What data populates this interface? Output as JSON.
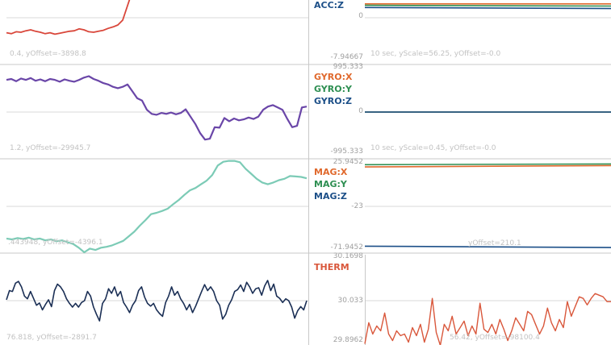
{
  "colors": {
    "background": "#ffffff",
    "gridline": "#d8d8d8",
    "divider": "#c8c8c8",
    "acc": "#d9463a",
    "gyro": "#6a46a8",
    "mag": "#7ccbb6",
    "therm_left": "#1b2f55",
    "x_series": "#e0692d",
    "y_series": "#2e8f52",
    "z_series": "#1c4f88",
    "therm": "#d9573b",
    "tick_text": "#a0a0a0",
    "info_text": "#c2c2c2"
  },
  "left_panels": {
    "acc_info": "0.4, yOffset=-3898.8",
    "gyro_info": "1.2, yOffset=-29945.7",
    "mag_info": ".443948, yOffset=-4396.1",
    "therm_info": "76.818, yOffset=-2891.7"
  },
  "right_panels": {
    "acc": {
      "labels": [
        "ACC:Z"
      ],
      "tick_mid": "0",
      "tick_bottom": "-7.94667",
      "info": "10 sec, yScale=56.25, yOffset=-0.0"
    },
    "gyro": {
      "labels": [
        "GYRO:X",
        "GYRO:Y",
        "GYRO:Z"
      ],
      "tick_top": "995.333",
      "tick_mid": "0",
      "tick_bottom": "-995.333",
      "info": "10 sec, yScale=0.45, yOffset=-0.0"
    },
    "mag": {
      "labels": [
        "MAG:X",
        "MAG:Y",
        "MAG:Z"
      ],
      "tick_top": "25.9452",
      "tick_mid": "-23",
      "tick_bottom": "-71.9452",
      "info": "yOffset=210.1"
    },
    "therm": {
      "labels": [
        "THERM"
      ],
      "tick_top": "30.1698",
      "tick_mid": "30.033",
      "tick_bottom": "29.8962",
      "info": "56.42, yOffset=-98100.4"
    }
  },
  "chart_data": [
    {
      "type": "line",
      "title": "",
      "series": [
        {
          "values": [
            0.31,
            0.33,
            0.29,
            0.3,
            0.27,
            0.25,
            0.28,
            0.3,
            0.33,
            0.31,
            0.34,
            0.32,
            0.3,
            0.28,
            0.27,
            0.23,
            0.25,
            0.29,
            0.3,
            0.28,
            0.26,
            0.22,
            0.19,
            0.15,
            0.05,
            -0.25,
            -0.55,
            -0.72,
            -0.72,
            -0.78,
            -0.88,
            -0.95,
            -0.9,
            -0.82,
            -0.93,
            -0.96,
            -0.92,
            -0.88,
            -0.96,
            -0.9,
            -0.85,
            -0.93,
            -1.0,
            -0.95,
            -0.88,
            -0.85,
            -0.9,
            -0.95,
            -1.0,
            -0.95,
            -0.92,
            -0.95,
            -0.98,
            -1.0,
            -0.96,
            -0.85,
            -0.7,
            -0.75,
            -0.8,
            -0.9,
            -0.95,
            -1.0,
            -0.9
          ]
        }
      ]
    },
    {
      "type": "line",
      "x": [
        0,
        5
      ],
      "ylim": [
        -7.94667,
        7.94667
      ],
      "series": [
        {
          "name": "ACC:Z",
          "values": [
            7.3,
            7.3
          ]
        },
        {
          "values": [
            6.9,
            6.7
          ]
        },
        {
          "values": [
            6.3,
            6.0
          ]
        }
      ]
    },
    {
      "type": "line",
      "title": "",
      "series": [
        {
          "values": [
            -0.7,
            -0.72,
            -0.67,
            -0.73,
            -0.7,
            -0.74,
            -0.68,
            -0.71,
            -0.67,
            -0.72,
            -0.7,
            -0.66,
            -0.71,
            -0.68,
            -0.66,
            -0.7,
            -0.75,
            -0.78,
            -0.72,
            -0.68,
            -0.63,
            -0.6,
            -0.55,
            -0.52,
            -0.55,
            -0.6,
            -0.45,
            -0.3,
            -0.25,
            -0.05,
            0.04,
            0.06,
            0.02,
            0.04,
            0.01,
            0.05,
            0.02,
            -0.06,
            0.1,
            0.26,
            0.46,
            0.6,
            0.58,
            0.33,
            0.34,
            0.13,
            0.2,
            0.14,
            0.18,
            0.16,
            0.12,
            0.15,
            0.1,
            -0.05,
            -0.12,
            -0.15,
            -0.1,
            -0.05,
            0.15,
            0.33,
            0.3,
            -0.1,
            -0.12
          ]
        }
      ]
    },
    {
      "type": "line",
      "x": [
        0,
        5
      ],
      "ylim": [
        -995.333,
        995.333
      ],
      "series": [
        {
          "name": "GYRO:X",
          "values": [
            0,
            0
          ]
        },
        {
          "name": "GYRO:Y",
          "values": [
            0,
            0
          ]
        },
        {
          "name": "GYRO:Z",
          "values": [
            0,
            0
          ]
        }
      ]
    },
    {
      "type": "line",
      "title": "",
      "series": [
        {
          "values": [
            -0.7,
            -0.72,
            -0.69,
            -0.71,
            -0.68,
            -0.72,
            -0.7,
            -0.74,
            -0.72,
            -0.76,
            -0.74,
            -0.78,
            -0.82,
            -0.9,
            -1.0,
            -0.92,
            -0.95,
            -0.9,
            -0.88,
            -0.85,
            -0.8,
            -0.75,
            -0.65,
            -0.55,
            -0.42,
            -0.3,
            -0.17,
            -0.14,
            -0.1,
            -0.05,
            0.05,
            0.14,
            0.25,
            0.35,
            0.4,
            0.48,
            0.56,
            0.68,
            0.89,
            0.97,
            0.99,
            0.99,
            0.96,
            0.82,
            0.71,
            0.6,
            0.52,
            0.48,
            0.52,
            0.57,
            0.6,
            0.66,
            0.65,
            0.64,
            0.61
          ]
        }
      ]
    },
    {
      "type": "line",
      "x": [
        0,
        5
      ],
      "ylim": [
        -71.9452,
        25.9452
      ],
      "series": [
        {
          "name": "MAG:X",
          "values": [
            20.5,
            22.0
          ]
        },
        {
          "name": "MAG:Y",
          "values": [
            23.0,
            23.8
          ]
        },
        {
          "name": "MAG:Z",
          "values": [
            -67.0,
            -68.5
          ]
        }
      ]
    },
    {
      "type": "line",
      "title": "",
      "series": [
        {
          "values": [
            0.02,
            0.22,
            0.2,
            0.38,
            0.42,
            0.3,
            0.1,
            0.04,
            0.2,
            0.05,
            -0.1,
            -0.05,
            -0.2,
            -0.08,
            0.02,
            -0.13,
            0.22,
            0.36,
            0.3,
            0.2,
            0.04,
            -0.06,
            -0.14,
            -0.06,
            -0.14,
            -0.04,
            0.0,
            0.2,
            0.1,
            -0.14,
            -0.3,
            -0.44,
            -0.06,
            0.04,
            0.26,
            0.16,
            0.3,
            0.1,
            0.2,
            -0.04,
            -0.14,
            -0.26,
            -0.1,
            0.0,
            0.22,
            0.3,
            0.08,
            -0.06,
            -0.12,
            -0.06,
            -0.2,
            -0.28,
            -0.34,
            -0.04,
            0.1,
            0.3,
            0.12,
            0.2,
            0.04,
            -0.06,
            -0.2,
            -0.08,
            -0.26,
            -0.12,
            0.04,
            0.2,
            0.35,
            0.22,
            0.3,
            0.2,
            0.0,
            -0.1,
            -0.4,
            -0.3,
            -0.1,
            0.02,
            0.2,
            0.24,
            0.34,
            0.2,
            0.4,
            0.3,
            0.16,
            0.26,
            0.28,
            0.12,
            0.32,
            0.44,
            0.22,
            0.36,
            0.1,
            0.05,
            -0.04,
            0.04,
            0.0,
            -0.14,
            -0.38,
            -0.22,
            -0.13,
            -0.2,
            0.0
          ]
        }
      ]
    },
    {
      "type": "line",
      "ylim": [
        29.8962,
        30.1698
      ],
      "series": [
        {
          "name": "THERM",
          "values": [
            29.9,
            29.965,
            29.93,
            29.955,
            29.94,
            29.995,
            29.93,
            29.91,
            29.94,
            29.925,
            29.93,
            29.905,
            29.95,
            29.925,
            29.96,
            29.905,
            29.945,
            30.04,
            29.935,
            29.895,
            29.96,
            29.94,
            29.985,
            29.93,
            29.95,
            29.97,
            29.925,
            29.955,
            29.93,
            30.025,
            29.945,
            29.935,
            29.96,
            29.93,
            29.975,
            29.945,
            29.91,
            29.94,
            29.98,
            29.96,
            29.94,
            30.0,
            29.99,
            29.96,
            29.93,
            29.955,
            30.01,
            29.965,
            29.94,
            29.975,
            29.95,
            30.03,
            29.985,
            30.015,
            30.045,
            30.04,
            30.02,
            30.04,
            30.055,
            30.05,
            30.045,
            30.03,
            30.03
          ]
        }
      ]
    }
  ]
}
